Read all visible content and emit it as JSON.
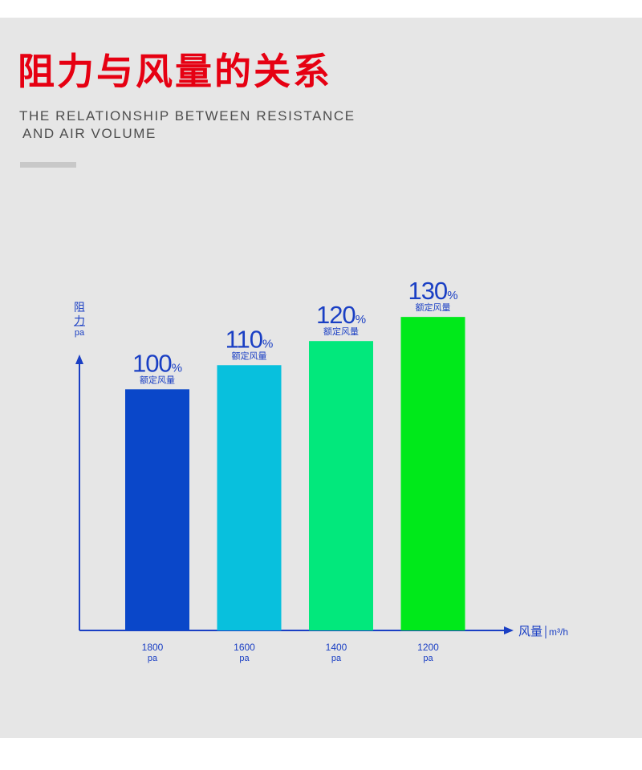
{
  "header": {
    "title": "阻力与风量的关系",
    "subtitle_line1": "THE RELATIONSHIP BETWEEN RESISTANCE",
    "subtitle_line2": "AND AIR VOLUME"
  },
  "colors": {
    "title": "#e60012",
    "axis": "#1a3fc4",
    "label": "#1a3fc4",
    "panel": "#e6e6e6"
  },
  "chart_data": {
    "type": "bar",
    "title": "",
    "ylabel_lines": [
      "阻",
      "力"
    ],
    "ylabel_unit": "pa",
    "xlabel": "风量",
    "xlabel_unit": "m³/h",
    "categories": [
      "1800",
      "1600",
      "1400",
      "1200"
    ],
    "category_unit": "pa",
    "values": [
      100,
      110,
      120,
      130
    ],
    "value_unit": "%",
    "value_caption": "额定风量",
    "bar_colors": [
      "#0a47c9",
      "#08c0dd",
      "#02e87c",
      "#00e91a"
    ],
    "ylim": [
      0,
      150
    ],
    "grid": false,
    "legend": "none"
  }
}
